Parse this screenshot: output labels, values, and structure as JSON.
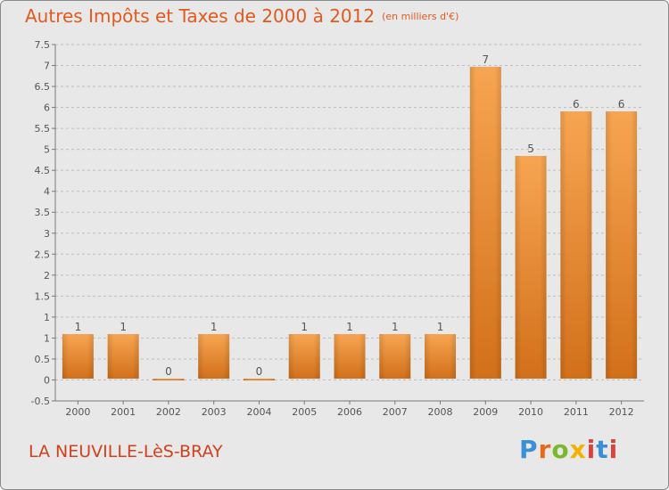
{
  "title": "Autres Impôts et Taxes de 2000 à 2012",
  "title_unit": "(en milliers d'€)",
  "commune": "LA NEUVILLE-LèS-BRAY",
  "logo_text": "Proxiti",
  "chart_data": {
    "type": "bar",
    "categories": [
      "2000",
      "2001",
      "2002",
      "2003",
      "2004",
      "2005",
      "2006",
      "2007",
      "2008",
      "2009",
      "2010",
      "2011",
      "2012"
    ],
    "values": [
      1,
      1,
      0,
      1,
      0,
      1,
      1,
      1,
      1,
      7,
      5,
      6,
      6
    ],
    "data_labels": [
      "1",
      "1",
      "0",
      "1",
      "0",
      "1",
      "1",
      "1",
      "1",
      "7",
      "5",
      "6",
      "6"
    ],
    "y_ticks": [
      "-0.5",
      "0",
      "0.5",
      "1",
      "1",
      "1.5",
      "2",
      "2.5",
      "3",
      "3.5",
      "4",
      "4.5",
      "5",
      "5.5",
      "6",
      "6.5",
      "7",
      "7.5"
    ],
    "ylim": [
      -0.5,
      7.5
    ],
    "grid": "horizontal dashed",
    "colors": {
      "bar_top": "#f7a552",
      "bar_bottom": "#d2701a",
      "text": "#555555",
      "title": "#e05a1f"
    }
  }
}
